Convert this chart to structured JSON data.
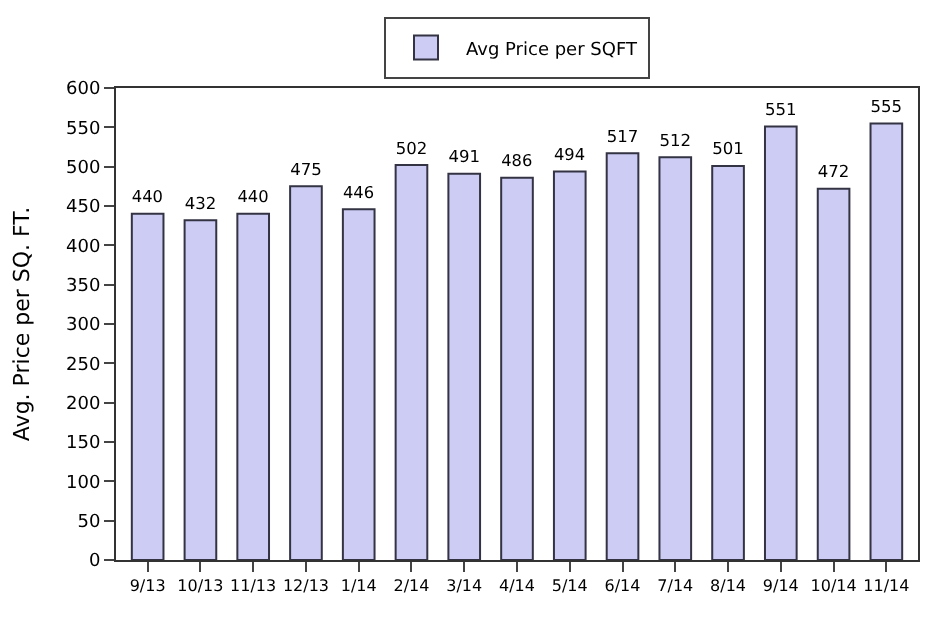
{
  "chart_data": {
    "type": "bar",
    "ylabel": "Avg. Price per SQ. FT.",
    "categories": [
      "9/13",
      "10/13",
      "11/13",
      "12/13",
      "1/14",
      "2/14",
      "3/14",
      "4/14",
      "5/14",
      "6/14",
      "7/14",
      "8/14",
      "9/14",
      "10/14",
      "11/14"
    ],
    "series": [
      {
        "name": "Avg Price per SQFT",
        "color": "#ccccf5",
        "values": [
          440,
          432,
          440,
          475,
          446,
          502,
          491,
          486,
          494,
          517,
          512,
          501,
          551,
          472,
          555
        ]
      }
    ],
    "ylim": [
      0,
      600
    ],
    "yticks": [
      0,
      50,
      100,
      150,
      200,
      250,
      300,
      350,
      400,
      450,
      500,
      550,
      600
    ],
    "data_labels": true,
    "legend": "top",
    "grid": false
  }
}
